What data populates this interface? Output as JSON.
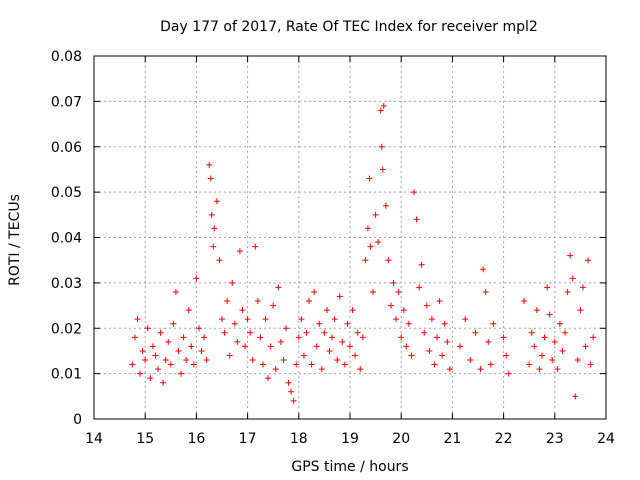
{
  "chart_data": {
    "type": "scatter",
    "title": "Day 177 of 2017, Rate Of TEC Index for receiver mpl2",
    "xlabel": "GPS time / hours",
    "ylabel": "ROTI / TECUs",
    "xlim": [
      14,
      24
    ],
    "ylim": [
      0,
      0.08
    ],
    "x_ticks": [
      "14",
      "15",
      "16",
      "17",
      "18",
      "19",
      "20",
      "21",
      "22",
      "23",
      "24"
    ],
    "y_ticks": [
      "0",
      "0.01",
      "0.02",
      "0.03",
      "0.04",
      "0.05",
      "0.06",
      "0.07",
      "0.08"
    ],
    "grid": true,
    "marker": "+",
    "color": "#ff0000",
    "series": [
      {
        "name": "ROTI",
        "points": [
          [
            14.75,
            0.012
          ],
          [
            14.8,
            0.018
          ],
          [
            14.85,
            0.022
          ],
          [
            14.9,
            0.01
          ],
          [
            14.95,
            0.015
          ],
          [
            15.0,
            0.013
          ],
          [
            15.05,
            0.02
          ],
          [
            15.1,
            0.009
          ],
          [
            15.15,
            0.016
          ],
          [
            15.2,
            0.014
          ],
          [
            15.25,
            0.011
          ],
          [
            15.3,
            0.019
          ],
          [
            15.35,
            0.008
          ],
          [
            15.4,
            0.013
          ],
          [
            15.45,
            0.017
          ],
          [
            15.5,
            0.012
          ],
          [
            15.55,
            0.021
          ],
          [
            15.6,
            0.028
          ],
          [
            15.65,
            0.015
          ],
          [
            15.7,
            0.01
          ],
          [
            15.75,
            0.018
          ],
          [
            15.8,
            0.013
          ],
          [
            15.85,
            0.024
          ],
          [
            15.9,
            0.016
          ],
          [
            15.95,
            0.012
          ],
          [
            16.0,
            0.031
          ],
          [
            16.05,
            0.02
          ],
          [
            16.1,
            0.015
          ],
          [
            16.15,
            0.018
          ],
          [
            16.2,
            0.013
          ],
          [
            16.25,
            0.056
          ],
          [
            16.28,
            0.053
          ],
          [
            16.3,
            0.045
          ],
          [
            16.33,
            0.038
          ],
          [
            16.35,
            0.042
          ],
          [
            16.4,
            0.048
          ],
          [
            16.45,
            0.035
          ],
          [
            16.5,
            0.022
          ],
          [
            16.55,
            0.019
          ],
          [
            16.6,
            0.026
          ],
          [
            16.65,
            0.014
          ],
          [
            16.7,
            0.03
          ],
          [
            16.75,
            0.021
          ],
          [
            16.8,
            0.017
          ],
          [
            16.85,
            0.037
          ],
          [
            16.9,
            0.024
          ],
          [
            16.95,
            0.016
          ],
          [
            17.0,
            0.022
          ],
          [
            17.05,
            0.019
          ],
          [
            17.1,
            0.013
          ],
          [
            17.15,
            0.038
          ],
          [
            17.2,
            0.026
          ],
          [
            17.25,
            0.018
          ],
          [
            17.3,
            0.012
          ],
          [
            17.35,
            0.022
          ],
          [
            17.4,
            0.009
          ],
          [
            17.45,
            0.016
          ],
          [
            17.5,
            0.025
          ],
          [
            17.55,
            0.011
          ],
          [
            17.6,
            0.029
          ],
          [
            17.65,
            0.017
          ],
          [
            17.7,
            0.013
          ],
          [
            17.75,
            0.02
          ],
          [
            17.8,
            0.008
          ],
          [
            17.85,
            0.006
          ],
          [
            17.9,
            0.004
          ],
          [
            17.95,
            0.012
          ],
          [
            18.0,
            0.018
          ],
          [
            18.05,
            0.022
          ],
          [
            18.1,
            0.014
          ],
          [
            18.15,
            0.019
          ],
          [
            18.2,
            0.026
          ],
          [
            18.25,
            0.012
          ],
          [
            18.3,
            0.028
          ],
          [
            18.35,
            0.016
          ],
          [
            18.4,
            0.021
          ],
          [
            18.45,
            0.011
          ],
          [
            18.5,
            0.019
          ],
          [
            18.55,
            0.024
          ],
          [
            18.6,
            0.015
          ],
          [
            18.65,
            0.018
          ],
          [
            18.7,
            0.022
          ],
          [
            18.75,
            0.013
          ],
          [
            18.8,
            0.027
          ],
          [
            18.85,
            0.017
          ],
          [
            18.9,
            0.012
          ],
          [
            18.95,
            0.021
          ],
          [
            19.0,
            0.016
          ],
          [
            19.05,
            0.024
          ],
          [
            19.1,
            0.014
          ],
          [
            19.15,
            0.019
          ],
          [
            19.2,
            0.011
          ],
          [
            19.25,
            0.018
          ],
          [
            19.3,
            0.035
          ],
          [
            19.35,
            0.042
          ],
          [
            19.38,
            0.053
          ],
          [
            19.4,
            0.038
          ],
          [
            19.45,
            0.028
          ],
          [
            19.5,
            0.045
          ],
          [
            19.55,
            0.039
          ],
          [
            19.6,
            0.068
          ],
          [
            19.62,
            0.06
          ],
          [
            19.64,
            0.055
          ],
          [
            19.66,
            0.069
          ],
          [
            19.7,
            0.047
          ],
          [
            19.75,
            0.035
          ],
          [
            19.8,
            0.025
          ],
          [
            19.85,
            0.03
          ],
          [
            19.9,
            0.022
          ],
          [
            19.95,
            0.028
          ],
          [
            20.0,
            0.018
          ],
          [
            20.05,
            0.024
          ],
          [
            20.1,
            0.016
          ],
          [
            20.15,
            0.021
          ],
          [
            20.2,
            0.014
          ],
          [
            20.25,
            0.05
          ],
          [
            20.3,
            0.044
          ],
          [
            20.35,
            0.029
          ],
          [
            20.4,
            0.034
          ],
          [
            20.45,
            0.019
          ],
          [
            20.5,
            0.025
          ],
          [
            20.55,
            0.015
          ],
          [
            20.6,
            0.022
          ],
          [
            20.65,
            0.012
          ],
          [
            20.7,
            0.018
          ],
          [
            20.75,
            0.026
          ],
          [
            20.8,
            0.014
          ],
          [
            20.85,
            0.021
          ],
          [
            20.9,
            0.017
          ],
          [
            20.95,
            0.011
          ],
          [
            21.15,
            0.016
          ],
          [
            21.25,
            0.022
          ],
          [
            21.35,
            0.013
          ],
          [
            21.45,
            0.019
          ],
          [
            21.55,
            0.011
          ],
          [
            21.6,
            0.033
          ],
          [
            21.65,
            0.028
          ],
          [
            21.7,
            0.017
          ],
          [
            21.75,
            0.012
          ],
          [
            21.8,
            0.021
          ],
          [
            22.0,
            0.018
          ],
          [
            22.05,
            0.014
          ],
          [
            22.1,
            0.01
          ],
          [
            22.4,
            0.026
          ],
          [
            22.5,
            0.012
          ],
          [
            22.55,
            0.019
          ],
          [
            22.6,
            0.016
          ],
          [
            22.65,
            0.024
          ],
          [
            22.7,
            0.011
          ],
          [
            22.75,
            0.014
          ],
          [
            22.8,
            0.018
          ],
          [
            22.85,
            0.029
          ],
          [
            22.9,
            0.023
          ],
          [
            22.95,
            0.013
          ],
          [
            23.0,
            0.017
          ],
          [
            23.05,
            0.011
          ],
          [
            23.1,
            0.021
          ],
          [
            23.15,
            0.015
          ],
          [
            23.2,
            0.019
          ],
          [
            23.25,
            0.028
          ],
          [
            23.3,
            0.036
          ],
          [
            23.35,
            0.031
          ],
          [
            23.4,
            0.005
          ],
          [
            23.45,
            0.013
          ],
          [
            23.5,
            0.024
          ],
          [
            23.55,
            0.029
          ],
          [
            23.6,
            0.016
          ],
          [
            23.65,
            0.035
          ],
          [
            23.7,
            0.012
          ],
          [
            23.75,
            0.018
          ]
        ]
      }
    ]
  }
}
